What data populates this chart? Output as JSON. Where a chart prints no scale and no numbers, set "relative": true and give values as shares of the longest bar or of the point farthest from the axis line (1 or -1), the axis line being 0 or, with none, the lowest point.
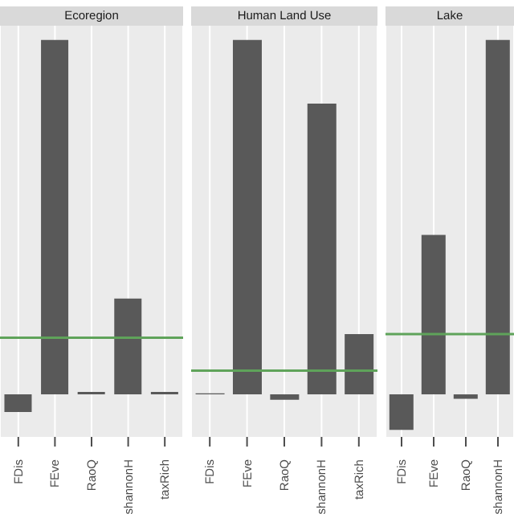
{
  "chart_data": [
    {
      "type": "bar",
      "title": "Ecoregion",
      "categories": [
        "FDis",
        "FEve",
        "RaoQ",
        "shannonH",
        "taxRich"
      ],
      "relative": true,
      "grid": "x",
      "color": "#595959",
      "values": [
        -0.05,
        1,
        0.007,
        0.27,
        0.007
      ],
      "ref_lines": [
        {
          "axis": "y",
          "value": 0.16,
          "color": "#5fa35a"
        }
      ]
    },
    {
      "type": "bar",
      "title": "Human Land Use",
      "categories": [
        "FDis",
        "FEve",
        "RaoQ",
        "shannonH",
        "taxRich"
      ],
      "relative": true,
      "grid": "x",
      "color": "#595959",
      "values": [
        0.003,
        1,
        -0.015,
        0.82,
        0.17
      ],
      "ref_lines": [
        {
          "axis": "y",
          "value": 0.067,
          "color": "#5fa35a"
        }
      ]
    },
    {
      "type": "bar",
      "title": "Lake",
      "categories": [
        "FDis",
        "FEve",
        "RaoQ",
        "shannonH"
      ],
      "relative": true,
      "grid": "x",
      "color": "#595959",
      "values": [
        -0.1,
        0.45,
        -0.0125,
        1
      ],
      "ref_lines": [
        {
          "axis": "y",
          "value": 0.17,
          "color": "#5fa35a"
        }
      ]
    }
  ]
}
